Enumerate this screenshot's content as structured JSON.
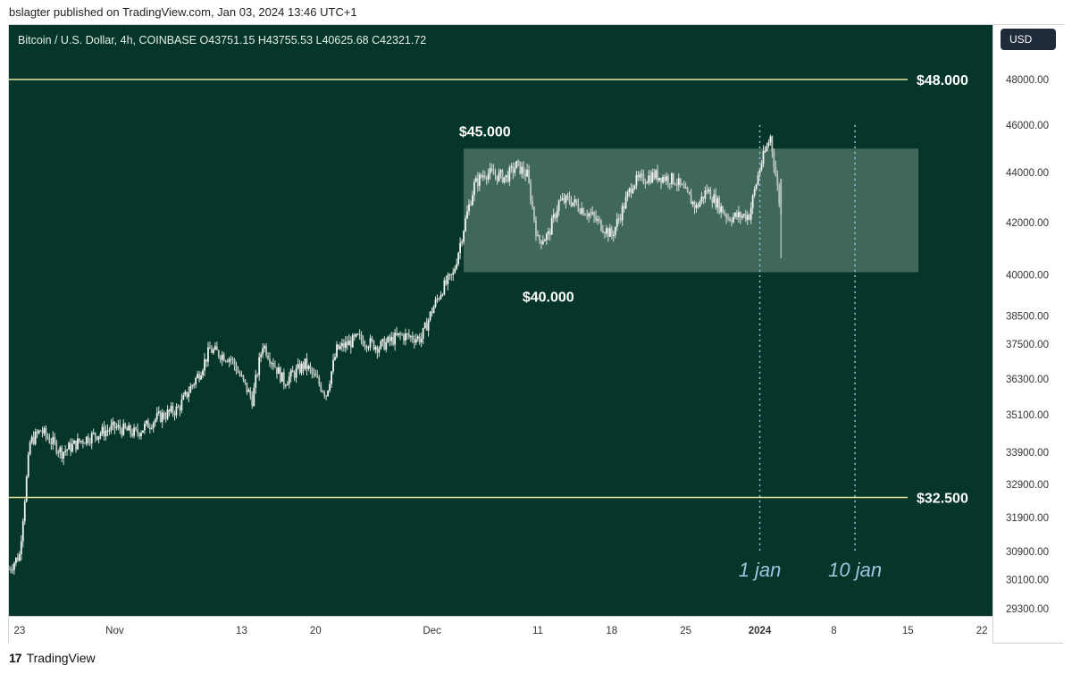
{
  "header": {
    "published": "bslagter published on TradingView.com, Jan 03, 2024 13:46 UTC+1"
  },
  "legend": {
    "text": "Bitcoin / U.S. Dollar, 4h, COINBASE  O43751.15  H43755.53  L40625.68  C42321.72"
  },
  "price_axis": {
    "currency_button": "USD"
  },
  "footer": {
    "logo_glyph": "17",
    "brand": "TradingView"
  },
  "colors": {
    "background": "#063629",
    "candles": "#d8ddd9",
    "level_lines": "#e8e29a",
    "range_box": "rgba(150,180,165,0.40)",
    "annotation_text": "#ffffff",
    "date_markers": "#9fc3df"
  },
  "chart_data": {
    "type": "candlestick",
    "symbol": "Bitcoin / U.S. Dollar",
    "interval": "4h",
    "exchange": "COINBASE",
    "ohlc_last": {
      "open": 43751.15,
      "high": 43755.53,
      "low": 40625.68,
      "close": 42321.72
    },
    "y_scale": "log",
    "ylim": [
      29100,
      50500
    ],
    "y_ticks": [
      48000,
      46000,
      44000,
      42000,
      40000,
      38500,
      37500,
      36300,
      35100,
      33900,
      32900,
      31900,
      30900,
      30100,
      29300
    ],
    "y_tick_labels": [
      "48000.00",
      "46000.00",
      "44000.00",
      "42000.00",
      "40000.00",
      "38500.00",
      "37500.00",
      "36300.00",
      "35100.00",
      "33900.00",
      "32900.00",
      "31900.00",
      "30900.00",
      "30100.00",
      "29300.00"
    ],
    "x_tick_labels": [
      "23",
      "Nov",
      "13",
      "20",
      "Dec",
      "11",
      "18",
      "25",
      "2024",
      "8",
      "15",
      "22"
    ],
    "x_tick_dates": [
      "2023-10-23",
      "2023-11-01",
      "2023-11-13",
      "2023-11-20",
      "2023-12-01",
      "2023-12-11",
      "2023-12-18",
      "2023-12-25",
      "2024-01-01",
      "2024-01-08",
      "2024-01-15",
      "2024-01-22"
    ],
    "xlim": [
      "2023-10-22",
      "2024-01-23"
    ],
    "price_path": [
      [
        "2023-10-22",
        30400
      ],
      [
        "2023-10-23",
        30800
      ],
      [
        "2023-10-24",
        34200
      ],
      [
        "2023-10-25",
        34600
      ],
      [
        "2023-10-27",
        33900
      ],
      [
        "2023-10-29",
        34300
      ],
      [
        "2023-11-01",
        34700
      ],
      [
        "2023-11-03",
        34500
      ],
      [
        "2023-11-05",
        35000
      ],
      [
        "2023-11-07",
        35300
      ],
      [
        "2023-11-09",
        36500
      ],
      [
        "2023-11-10",
        37300
      ],
      [
        "2023-11-12",
        37000
      ],
      [
        "2023-11-14",
        35600
      ],
      [
        "2023-11-15",
        37500
      ],
      [
        "2023-11-17",
        36200
      ],
      [
        "2023-11-19",
        36800
      ],
      [
        "2023-11-21",
        35800
      ],
      [
        "2023-11-22",
        37300
      ],
      [
        "2023-11-24",
        37700
      ],
      [
        "2023-11-26",
        37400
      ],
      [
        "2023-11-28",
        37800
      ],
      [
        "2023-11-30",
        37700
      ],
      [
        "2023-12-01",
        38700
      ],
      [
        "2023-12-02",
        39500
      ],
      [
        "2023-12-03",
        40000
      ],
      [
        "2023-12-04",
        41800
      ],
      [
        "2023-12-05",
        43500
      ],
      [
        "2023-12-06",
        44000
      ],
      [
        "2023-12-08",
        43800
      ],
      [
        "2023-12-09",
        44300
      ],
      [
        "2023-12-10",
        43900
      ],
      [
        "2023-12-11",
        41300
      ],
      [
        "2023-12-12",
        41500
      ],
      [
        "2023-12-13",
        42800
      ],
      [
        "2023-12-14",
        42900
      ],
      [
        "2023-12-16",
        42300
      ],
      [
        "2023-12-18",
        41500
      ],
      [
        "2023-12-19",
        42500
      ],
      [
        "2023-12-20",
        43600
      ],
      [
        "2023-12-22",
        43900
      ],
      [
        "2023-12-24",
        43700
      ],
      [
        "2023-12-26",
        42600
      ],
      [
        "2023-12-27",
        43300
      ],
      [
        "2023-12-29",
        42200
      ],
      [
        "2023-12-31",
        42300
      ],
      [
        "2024-01-01",
        44200
      ],
      [
        "2024-01-02",
        45500
      ],
      [
        "2024-01-03",
        42321.72
      ]
    ],
    "annotations": [
      {
        "text": "$48.000",
        "type": "horizontal_line",
        "price": 48000
      },
      {
        "text": "$32.500",
        "type": "horizontal_line",
        "price": 32500
      },
      {
        "text": "$45.000",
        "type": "label",
        "date": "2023-12-06",
        "price": 45000
      },
      {
        "text": "$40.000",
        "type": "label",
        "date": "2023-12-12",
        "price": 40000
      },
      {
        "text": "1 jan",
        "type": "vertical_marker",
        "date": "2024-01-01"
      },
      {
        "text": "10 jan",
        "type": "vertical_marker",
        "date": "2024-01-10"
      }
    ],
    "range_box": {
      "from": "2023-12-04",
      "to": "2024-01-16",
      "low": 40100,
      "high": 45000
    }
  }
}
